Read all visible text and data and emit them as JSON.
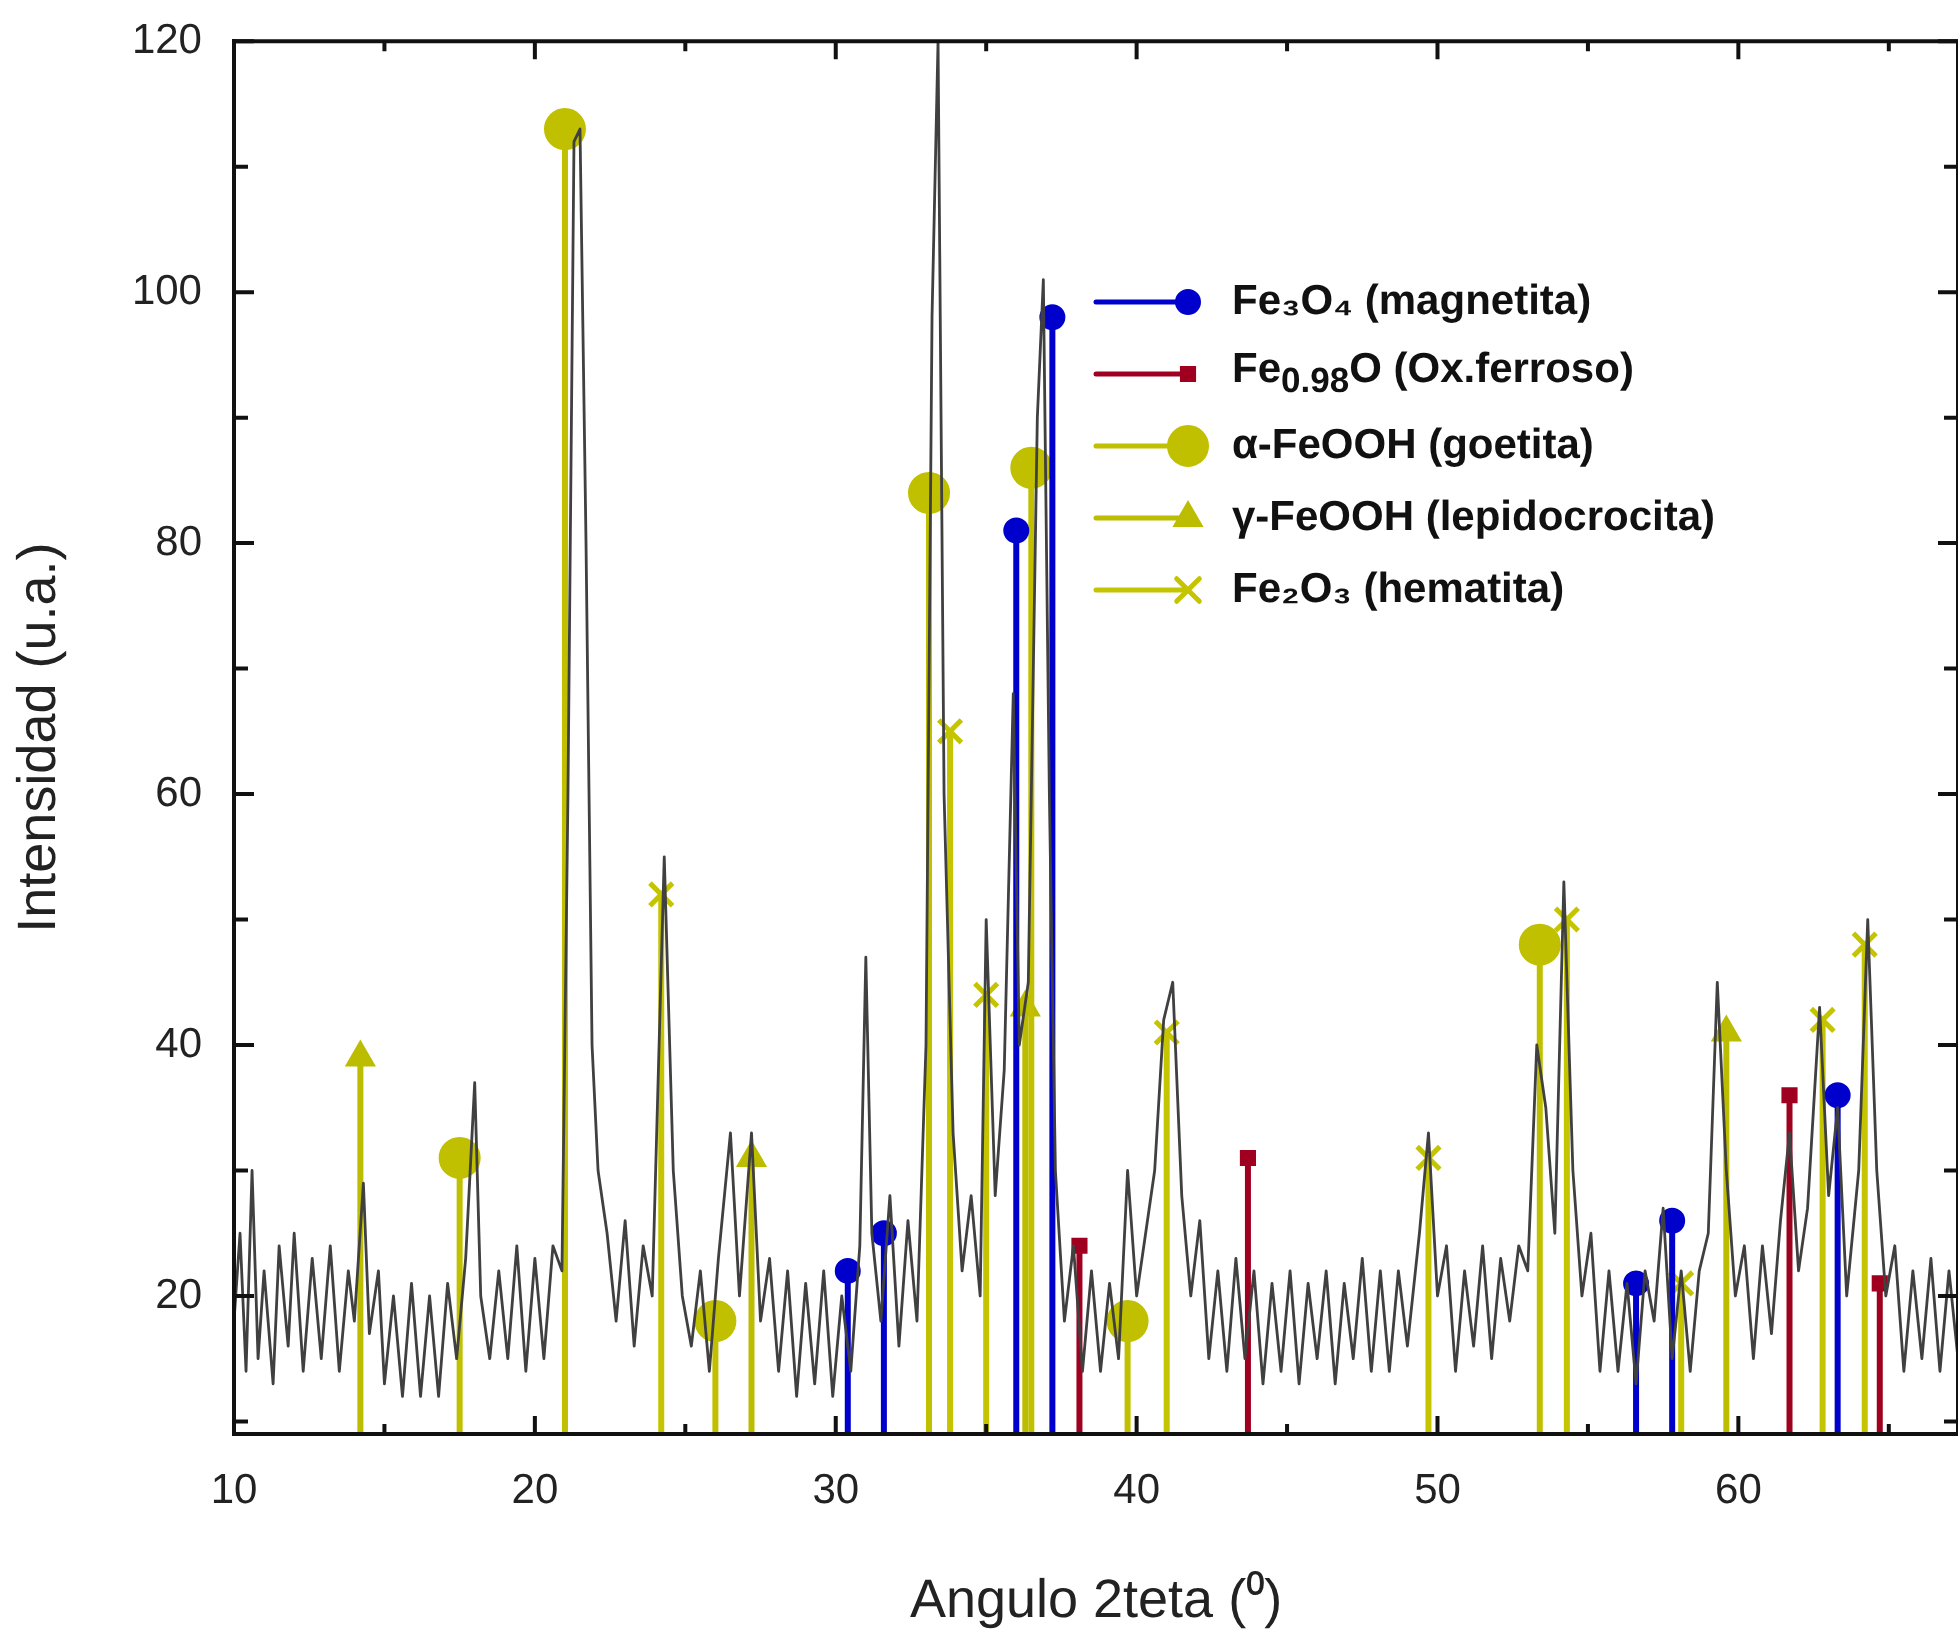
{
  "chart_data": {
    "type": "line",
    "xlabel": "Angulo 2teta (⁰)",
    "ylabel": "Intensidad (u.a.)",
    "xlim": [
      10,
      67.3
    ],
    "ylim": [
      9,
      120
    ],
    "xticks": [
      10,
      {
        "value": 15,
        "label": null
      },
      20,
      {
        "value": 25,
        "label": null
      },
      30,
      {
        "value": 35,
        "label": null
      },
      40,
      {
        "value": 45,
        "label": null
      },
      50,
      {
        "value": 55,
        "label": null
      },
      60,
      {
        "value": 65,
        "label": null
      }
    ],
    "yticks": [
      {
        "value": 10,
        "label": null
      },
      20,
      {
        "value": 30,
        "label": null
      },
      40,
      {
        "value": 50,
        "label": null
      },
      60,
      {
        "value": 70,
        "label": null
      },
      80,
      {
        "value": 90,
        "label": null
      },
      100,
      {
        "value": 110,
        "label": null
      },
      120
    ],
    "legend": "top right",
    "series": [
      {
        "color": "#404040",
        "x": [
          10.0,
          10.2,
          10.4,
          10.6,
          10.8,
          11.0,
          11.3,
          11.5,
          11.8,
          12.0,
          12.3,
          12.6,
          12.9,
          13.2,
          13.5,
          13.8,
          14.0,
          14.3,
          14.5,
          14.8,
          15.0,
          15.3,
          15.6,
          15.9,
          16.2,
          16.5,
          16.8,
          17.1,
          17.4,
          17.7,
          18.0,
          18.2,
          18.5,
          18.8,
          19.1,
          19.4,
          19.7,
          20.0,
          20.3,
          20.6,
          20.9,
          21.1,
          21.3,
          21.5,
          21.7,
          21.9,
          22.1,
          22.4,
          22.7,
          23.0,
          23.3,
          23.6,
          23.9,
          24.3,
          24.6,
          24.9,
          25.2,
          25.5,
          25.8,
          26.1,
          26.5,
          26.8,
          27.2,
          27.5,
          27.8,
          28.1,
          28.4,
          28.7,
          29.0,
          29.3,
          29.6,
          29.9,
          30.2,
          30.5,
          30.8,
          31.0,
          31.2,
          31.5,
          31.8,
          32.1,
          32.4,
          32.7,
          33.0,
          33.2,
          33.4,
          33.6,
          33.9,
          34.2,
          34.5,
          34.8,
          35.0,
          35.3,
          35.6,
          35.9,
          36.1,
          36.4,
          36.7,
          36.9,
          37.1,
          37.3,
          37.6,
          37.9,
          38.2,
          38.5,
          38.8,
          39.1,
          39.4,
          39.7,
          40.0,
          40.3,
          40.6,
          40.9,
          41.2,
          41.5,
          41.8,
          42.1,
          42.4,
          42.7,
          43.0,
          43.3,
          43.6,
          43.9,
          44.2,
          44.5,
          44.8,
          45.1,
          45.4,
          45.7,
          46.0,
          46.3,
          46.6,
          46.9,
          47.2,
          47.5,
          47.8,
          48.1,
          48.4,
          48.7,
          49.0,
          49.4,
          49.7,
          50.0,
          50.3,
          50.6,
          50.9,
          51.2,
          51.5,
          51.8,
          52.1,
          52.4,
          52.7,
          53.0,
          53.3,
          53.6,
          53.9,
          54.2,
          54.5,
          54.8,
          55.1,
          55.4,
          55.7,
          56.0,
          56.3,
          56.6,
          56.9,
          57.2,
          57.5,
          57.8,
          58.1,
          58.4,
          58.7,
          59.0,
          59.3,
          59.6,
          59.9,
          60.2,
          60.5,
          60.8,
          61.1,
          61.4,
          61.7,
          62.0,
          62.3,
          62.7,
          63.0,
          63.3,
          63.6,
          64.0,
          64.3,
          64.6,
          64.9,
          65.2,
          65.5,
          65.8,
          66.1,
          66.4,
          66.7,
          67.0,
          67.3
        ],
        "values": [
          18,
          25,
          14,
          30,
          15,
          22,
          13,
          24,
          16,
          25,
          14,
          23,
          15,
          24,
          14,
          22,
          18,
          29,
          17,
          22,
          13,
          20,
          12,
          21,
          12,
          20,
          12,
          21,
          15,
          23,
          37,
          20,
          15,
          22,
          15,
          24,
          14,
          23,
          15,
          24,
          22,
          60,
          112,
          113,
          80,
          40,
          30,
          25,
          18,
          26,
          16,
          24,
          20,
          55,
          30,
          20,
          16,
          22,
          14,
          23,
          33,
          20,
          33,
          18,
          23,
          14,
          22,
          12,
          21,
          13,
          22,
          12,
          20,
          14,
          24,
          47,
          25,
          18,
          28,
          16,
          26,
          18,
          40,
          98,
          120,
          60,
          33,
          22,
          28,
          20,
          50,
          28,
          38,
          68,
          40,
          45,
          90,
          101,
          60,
          30,
          18,
          24,
          14,
          22,
          14,
          21,
          15,
          30,
          20,
          25,
          30,
          42,
          45,
          28,
          20,
          26,
          15,
          22,
          14,
          23,
          15,
          22,
          13,
          21,
          14,
          22,
          13,
          21,
          15,
          22,
          13,
          21,
          15,
          23,
          14,
          22,
          14,
          22,
          16,
          25,
          33,
          20,
          24,
          14,
          22,
          16,
          24,
          15,
          23,
          18,
          24,
          22,
          40,
          35,
          25,
          53,
          30,
          20,
          25,
          14,
          22,
          14,
          21,
          13,
          22,
          18,
          27,
          15,
          22,
          14,
          22,
          25,
          45,
          30,
          20,
          24,
          15,
          24,
          17,
          26,
          33,
          22,
          27,
          43,
          28,
          35,
          20,
          30,
          50,
          30,
          20,
          24,
          14,
          22,
          15,
          23,
          14,
          22,
          15
        ]
      },
      {
        "type": "lollipop",
        "name": "Fe₃O₄ (magnetita)",
        "color": "#0000cc",
        "marker": "circle",
        "x": [
          30.4,
          31.6,
          36.0,
          37.2,
          56.6,
          57.8,
          63.3
        ],
        "values": [
          22,
          25,
          81,
          98,
          21,
          26,
          36
        ]
      },
      {
        "type": "lollipop",
        "name": "Fe$_{0.98}$O (Ox.ferroso)",
        "color": "#a00020",
        "marker": "square",
        "x": [
          38.1,
          43.7,
          61.7,
          64.7
        ],
        "values": [
          24,
          31,
          36,
          21
        ]
      },
      {
        "type": "lollipop",
        "name": "α-FeOOH (goetita)",
        "color": "#c0c000",
        "marker": "circle",
        "x": [
          17.5,
          21.0,
          26.0,
          33.1,
          36.5,
          39.7,
          53.4
        ],
        "values": [
          31,
          113,
          18,
          84,
          86,
          18,
          48
        ]
      },
      {
        "type": "lollipop",
        "name": "γ-FeOOH (lepidocrocita)",
        "color": "#bcbc00",
        "marker": "triangle",
        "x": [
          14.2,
          27.2,
          36.3,
          59.6
        ],
        "values": [
          39,
          31,
          43,
          41
        ]
      },
      {
        "type": "lollipop",
        "name": "Fe₂O₃ (hematita)",
        "color": "#c4c400",
        "marker": "cross",
        "x": [
          24.2,
          33.8,
          35.0,
          41.0,
          49.7,
          54.3,
          58.1,
          62.8,
          64.2
        ],
        "values": [
          52,
          65,
          44,
          41,
          31,
          50,
          21,
          42,
          48
        ]
      }
    ]
  }
}
